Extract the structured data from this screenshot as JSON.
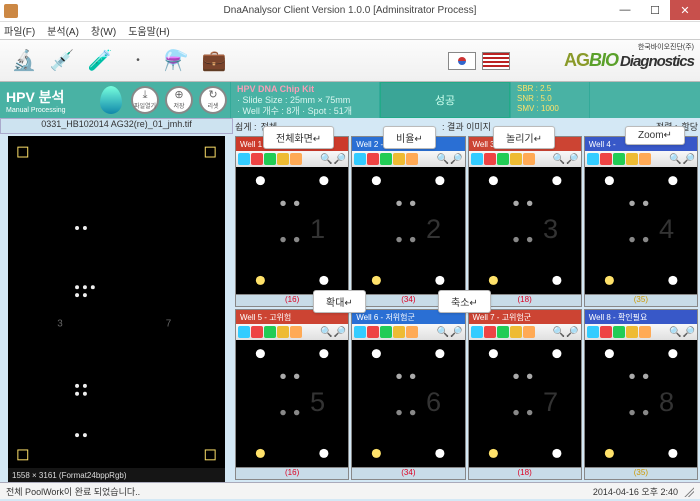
{
  "window": {
    "title": "DnaAnalysor Client Version 1.0.0 [Adminsitrator Process]"
  },
  "menu": {
    "file": "파일(F)",
    "analysis": "분석(A)",
    "window": "창(W)",
    "help": "도움말(H)"
  },
  "hpv": {
    "title": "HPV 분석",
    "sub": "Manual Processing"
  },
  "cbtns": {
    "a": "파일열기",
    "b": "저장",
    "c": "리셋"
  },
  "kit": {
    "title": "HPV DNA Chip Kit",
    "l1": "· Slide Size : 25mm × 75mm",
    "l2": "· Well 개수 : 8개 · Spot : 51개"
  },
  "success": "성공",
  "stats": {
    "a": "SBR : 2.5",
    "b": "SNR : 5.0",
    "c": "SMV : 1000"
  },
  "left_title": "0331_HB102014 AG32(re)_01_jmh.tif",
  "img_info": "1558 × 3161 (Format24bppRgb)",
  "ctrl": {
    "a": "쉽게 :",
    "b": "전체",
    "c": ": 결과 이미지",
    "d": "정렬 :",
    "e": "할당"
  },
  "tags": {
    "t1": "전체화면↵",
    "t2": "비율↵",
    "t3": "놀리기↵",
    "t4": "Zoom↵",
    "t5": "확대↵",
    "t6": "축소↵"
  },
  "wells": [
    {
      "hdr": "Well 1 -",
      "color": "#cc3a2a",
      "ft": "(16)",
      "ftc": "#d02"
    },
    {
      "hdr": "Well 2 -",
      "color": "#2a6fd4",
      "ft": "(34)",
      "ftc": "#d02"
    },
    {
      "hdr": "Well 3 -",
      "color": "#c43",
      "ft": "(18)",
      "ftc": "#d02"
    },
    {
      "hdr": "Well 4 -",
      "color": "#3858c8",
      "ft": "(35)",
      "ftc": "#c90"
    },
    {
      "hdr": "Well 5 - 고위험",
      "color": "#c43",
      "ft": "(16)",
      "ftc": "#d02"
    },
    {
      "hdr": "Well 6 - 저위험군",
      "color": "#2a6fd4",
      "ft": "(34)",
      "ftc": "#d02"
    },
    {
      "hdr": "Well 7 - 고위험군",
      "color": "#c43",
      "ft": "(18)",
      "ftc": "#d02"
    },
    {
      "hdr": "Well 8 - 확인필요",
      "color": "#3858c8",
      "ft": "(35)",
      "ftc": "#c90"
    }
  ],
  "tool_colors": [
    "#3cf",
    "#e44",
    "#2c5",
    "#eb3",
    "#fa5"
  ],
  "status": {
    "msg": "전체 PoolWork이 완료 되었습니다..",
    "time": "2014-04-16 오후 2:40"
  }
}
